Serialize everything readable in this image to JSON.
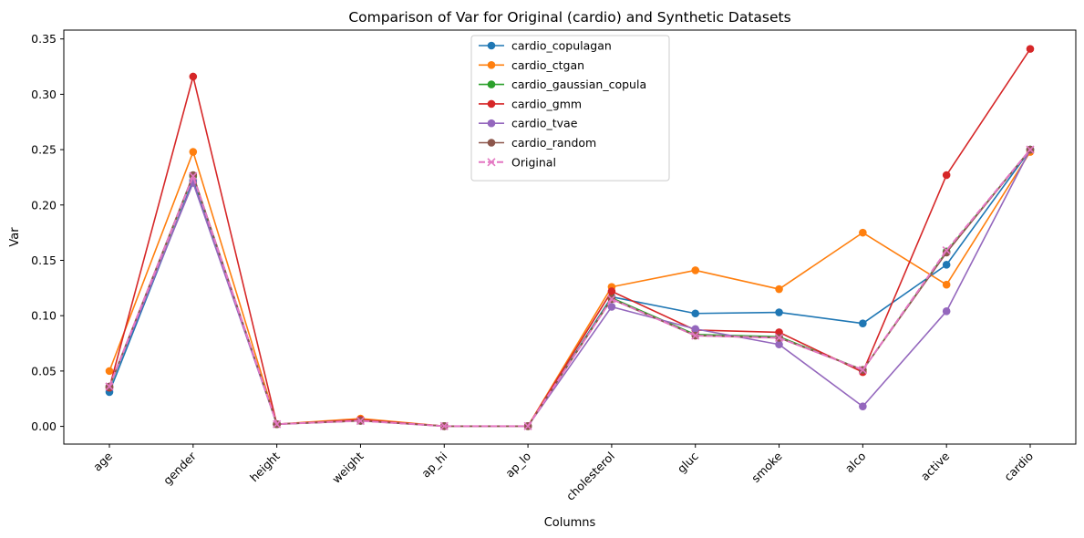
{
  "chart_data": {
    "type": "line",
    "title": "Comparison of Var for Original (cardio) and Synthetic Datasets",
    "xlabel": "Columns",
    "ylabel": "Var",
    "ylim": [
      -0.016,
      0.358
    ],
    "yticks": [
      0.0,
      0.05,
      0.1,
      0.15,
      0.2,
      0.25,
      0.3,
      0.35
    ],
    "ytick_labels": [
      "0.00",
      "0.05",
      "0.10",
      "0.15",
      "0.20",
      "0.25",
      "0.30",
      "0.35"
    ],
    "grid": false,
    "legend_position": "top-center",
    "categories": [
      "age",
      "gender",
      "height",
      "weight",
      "ap_hi",
      "ap_lo",
      "cholesterol",
      "gluc",
      "smoke",
      "alco",
      "active",
      "cardio"
    ],
    "series": [
      {
        "name": "cardio_copulagan",
        "color": "#1f77b4",
        "marker": "circle",
        "dashed": false,
        "values": [
          0.031,
          0.222,
          0.002,
          0.006,
          0.0002,
          0.0002,
          0.117,
          0.102,
          0.103,
          0.093,
          0.146,
          0.25
        ]
      },
      {
        "name": "cardio_ctgan",
        "color": "#ff7f0e",
        "marker": "circle",
        "dashed": false,
        "values": [
          0.05,
          0.248,
          0.002,
          0.007,
          0.0002,
          0.0002,
          0.126,
          0.141,
          0.124,
          0.175,
          0.128,
          0.248
        ]
      },
      {
        "name": "cardio_gaussian_copula",
        "color": "#2ca02c",
        "marker": "circle",
        "dashed": false,
        "values": [
          0.035,
          0.226,
          0.002,
          0.005,
          0.0002,
          0.0002,
          0.116,
          0.083,
          0.081,
          0.051,
          0.158,
          0.25
        ]
      },
      {
        "name": "cardio_gmm",
        "color": "#d62728",
        "marker": "circle",
        "dashed": false,
        "values": [
          0.035,
          0.316,
          0.002,
          0.006,
          0.0002,
          0.0002,
          0.122,
          0.087,
          0.085,
          0.049,
          0.227,
          0.341
        ]
      },
      {
        "name": "cardio_tvae",
        "color": "#9467bd",
        "marker": "circle",
        "dashed": false,
        "values": [
          0.036,
          0.22,
          0.002,
          0.005,
          0.0002,
          0.0002,
          0.108,
          0.088,
          0.074,
          0.018,
          0.104,
          0.25
        ]
      },
      {
        "name": "cardio_random",
        "color": "#8c564b",
        "marker": "circle",
        "dashed": false,
        "values": [
          0.036,
          0.227,
          0.002,
          0.005,
          0.0002,
          0.0002,
          0.115,
          0.082,
          0.08,
          0.051,
          0.157,
          0.25
        ]
      },
      {
        "name": "Original",
        "color": "#e377c2",
        "marker": "x",
        "dashed": true,
        "values": [
          0.036,
          0.226,
          0.002,
          0.005,
          0.0002,
          0.0002,
          0.115,
          0.082,
          0.08,
          0.051,
          0.159,
          0.25
        ]
      }
    ]
  }
}
